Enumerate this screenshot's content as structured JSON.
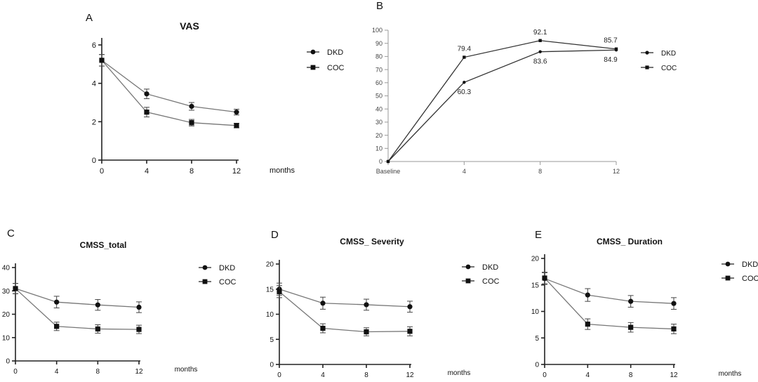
{
  "series_names": [
    "DKD",
    "COC"
  ],
  "chart_data": [
    {
      "panel": "A",
      "type": "line",
      "title": "VAS",
      "xlabel": "months",
      "ylabel": "",
      "categories": [
        "0",
        "4",
        "8",
        "12"
      ],
      "x": [
        0,
        4,
        8,
        12
      ],
      "xlim": [
        0,
        12
      ],
      "ylim": [
        0,
        6
      ],
      "yticks": [
        0,
        2,
        4,
        6
      ],
      "legend": "top-right",
      "series": [
        {
          "name": "DKD",
          "marker": "circle",
          "values": [
            5.2,
            3.45,
            2.8,
            2.5
          ],
          "errors": [
            0.3,
            0.25,
            0.2,
            0.15
          ]
        },
        {
          "name": "COC",
          "marker": "square",
          "values": [
            5.2,
            2.5,
            1.95,
            1.8
          ],
          "errors": [
            0.3,
            0.25,
            0.17,
            0.12
          ]
        }
      ]
    },
    {
      "panel": "B",
      "type": "line",
      "title": "",
      "xlabel": "",
      "ylabel": "",
      "categories": [
        "Baseline",
        "4",
        "8",
        "12"
      ],
      "x": [
        0,
        1,
        2,
        3
      ],
      "ylim": [
        0,
        100
      ],
      "yticks": [
        0,
        10,
        20,
        30,
        40,
        50,
        60,
        70,
        80,
        90,
        100
      ],
      "legend": "top-right",
      "series": [
        {
          "name": "DKD",
          "marker": "circle",
          "values": [
            0,
            60.3,
            83.6,
            84.9
          ],
          "labels": [
            "",
            "60.3",
            "83.6",
            "84.9"
          ]
        },
        {
          "name": "COC",
          "marker": "square",
          "values": [
            0,
            79.4,
            92.1,
            85.7
          ],
          "labels": [
            "",
            "79.4",
            "92.1",
            "85.7"
          ]
        }
      ]
    },
    {
      "panel": "C",
      "type": "line",
      "title": "CMSS_total",
      "xlabel": "months",
      "ylabel": "",
      "categories": [
        "0",
        "4",
        "8",
        "12"
      ],
      "x": [
        0,
        4,
        8,
        12
      ],
      "xlim": [
        0,
        12
      ],
      "ylim": [
        0,
        40
      ],
      "yticks": [
        0,
        10,
        20,
        30,
        40
      ],
      "legend": "top-right",
      "series": [
        {
          "name": "DKD",
          "marker": "circle",
          "values": [
            31,
            25.2,
            24,
            23
          ],
          "errors": [
            2.2,
            2.5,
            2.3,
            2.3
          ]
        },
        {
          "name": "COC",
          "marker": "square",
          "values": [
            31,
            14.8,
            13.7,
            13.5
          ],
          "errors": [
            2.2,
            1.8,
            1.8,
            1.8
          ]
        }
      ]
    },
    {
      "panel": "D",
      "type": "line",
      "title": "CMSS_ Severity",
      "xlabel": "months",
      "ylabel": "",
      "categories": [
        "0",
        "4",
        "8",
        "12"
      ],
      "x": [
        0,
        4,
        8,
        12
      ],
      "xlim": [
        0,
        12
      ],
      "ylim": [
        0,
        20
      ],
      "yticks": [
        0,
        5,
        10,
        15,
        20
      ],
      "legend": "top-right",
      "series": [
        {
          "name": "DKD",
          "marker": "circle",
          "values": [
            15,
            12.2,
            11.9,
            11.5
          ],
          "errors": [
            1.2,
            1.2,
            1.1,
            1.1
          ]
        },
        {
          "name": "COC",
          "marker": "square",
          "values": [
            14.5,
            7.2,
            6.5,
            6.6
          ],
          "errors": [
            1.2,
            0.9,
            0.8,
            0.9
          ]
        }
      ]
    },
    {
      "panel": "E",
      "type": "line",
      "title": "CMSS_ Duration",
      "xlabel": "months",
      "ylabel": "",
      "categories": [
        "0",
        "4",
        "8",
        "12"
      ],
      "x": [
        0,
        4,
        8,
        12
      ],
      "xlim": [
        0,
        12
      ],
      "ylim": [
        0,
        20
      ],
      "yticks": [
        0,
        5,
        10,
        15,
        20
      ],
      "legend": "top-right",
      "series": [
        {
          "name": "DKD",
          "marker": "circle",
          "values": [
            16.2,
            13.1,
            11.9,
            11.5
          ],
          "errors": [
            1.1,
            1.2,
            1.1,
            1.1
          ]
        },
        {
          "name": "COC",
          "marker": "square",
          "values": [
            16.3,
            7.6,
            7.0,
            6.7
          ],
          "errors": [
            1.1,
            1.0,
            0.9,
            0.9
          ]
        }
      ]
    }
  ]
}
